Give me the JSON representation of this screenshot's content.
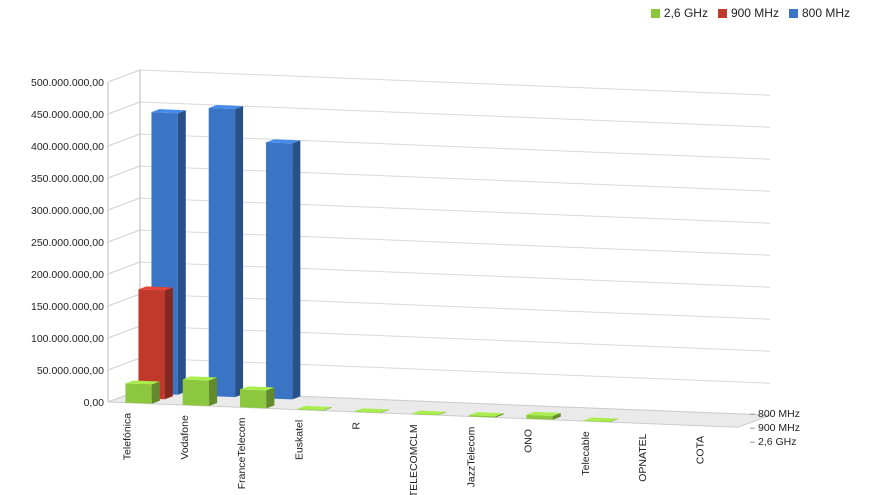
{
  "chart_data": {
    "type": "bar",
    "subtype": "3d-column",
    "categories": [
      "Telefónica",
      "Vodafone",
      "FranceTelecom",
      "Euskatel",
      "R",
      "TELECOMCLM",
      "JazzTelecom",
      "ONO",
      "Telecable",
      "OPNATEL",
      "COTA"
    ],
    "series": [
      {
        "name": "2,6 GHz",
        "color": "#8dc63f",
        "values": [
          30000000,
          40000000,
          28000000,
          1000000,
          800000,
          800000,
          2000000,
          6000000,
          800000,
          0,
          0
        ]
      },
      {
        "name": "900 MHz",
        "color": "#c0392b",
        "values": [
          170000000,
          0,
          0,
          0,
          0,
          0,
          0,
          0,
          0,
          0,
          0
        ]
      },
      {
        "name": "800 MHz",
        "color": "#3a74c4",
        "values": [
          440000000,
          450000000,
          400000000,
          0,
          0,
          0,
          0,
          0,
          0,
          0,
          0
        ]
      }
    ],
    "yticks": [
      "0,00",
      "50.000.000,00",
      "100.000.000,00",
      "150.000.000,00",
      "200.000.000,00",
      "250.000.000,00",
      "300.000.000,00",
      "350.000.000,00",
      "400.000.000,00",
      "450.000.000,00",
      "500.000.000,00"
    ],
    "ylim": [
      0,
      500000000
    ],
    "depth_labels": [
      "2,6 GHz",
      "900 MHz",
      "800 MHz"
    ],
    "legend_position": "top-right",
    "grid": true
  }
}
